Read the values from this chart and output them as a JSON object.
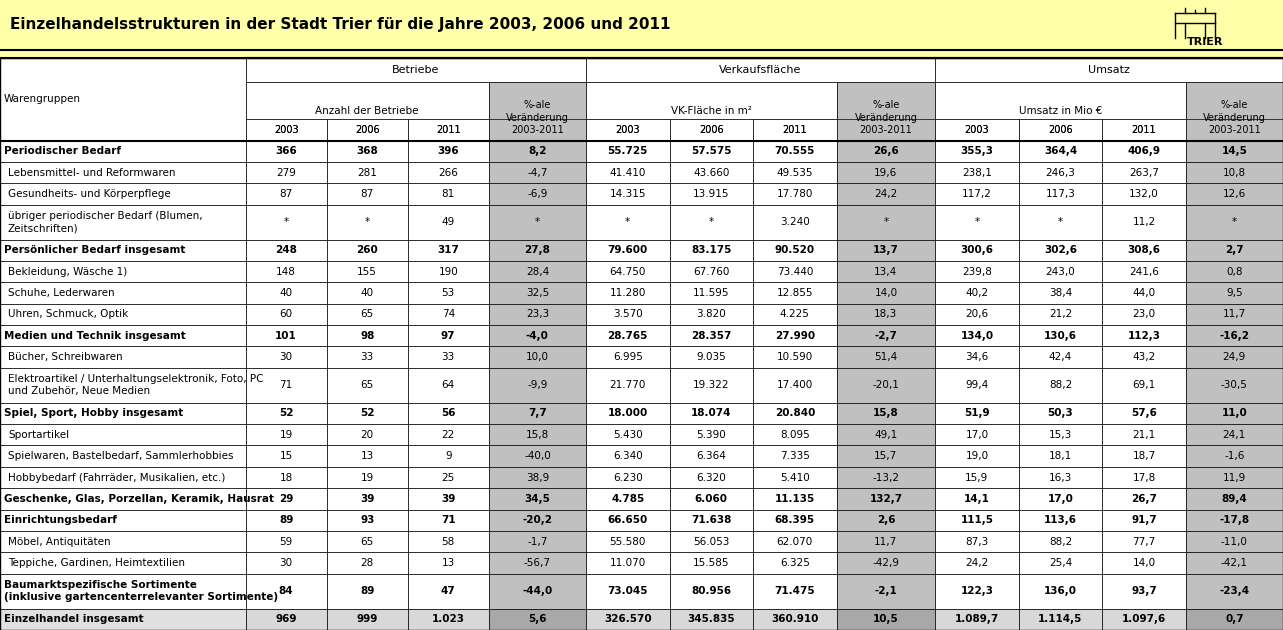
{
  "title": "Einzelhandelsstrukturen in der Stadt Trier für die Jahre 2003, 2006 und 2011",
  "header_bg": "#FFFFAA",
  "gray_col_bg": "#C0C0C0",
  "rows": [
    {
      "label": "Periodischer Bedarf",
      "bold": true,
      "multiline": false,
      "indent": false,
      "b03": "366",
      "b06": "368",
      "b11": "396",
      "bv": "8,2",
      "vk03": "55.725",
      "vk06": "57.575",
      "vk11": "70.555",
      "vkv": "26,6",
      "u03": "355,3",
      "u06": "364,4",
      "u11": "406,9",
      "uv": "14,5"
    },
    {
      "label": "Lebensmittel- und Reformwaren",
      "bold": false,
      "multiline": false,
      "indent": true,
      "b03": "279",
      "b06": "281",
      "b11": "266",
      "bv": "-4,7",
      "vk03": "41.410",
      "vk06": "43.660",
      "vk11": "49.535",
      "vkv": "19,6",
      "u03": "238,1",
      "u06": "246,3",
      "u11": "263,7",
      "uv": "10,8"
    },
    {
      "label": "Gesundheits- und Körperpflege",
      "bold": false,
      "multiline": false,
      "indent": true,
      "b03": "87",
      "b06": "87",
      "b11": "81",
      "bv": "-6,9",
      "vk03": "14.315",
      "vk06": "13.915",
      "vk11": "17.780",
      "vkv": "24,2",
      "u03": "117,2",
      "u06": "117,3",
      "u11": "132,0",
      "uv": "12,6"
    },
    {
      "label": "übriger periodischer Bedarf (Blumen,\nZeitschriften)",
      "bold": false,
      "multiline": true,
      "indent": true,
      "b03": "*",
      "b06": "*",
      "b11": "49",
      "bv": "*",
      "vk03": "*",
      "vk06": "*",
      "vk11": "3.240",
      "vkv": "*",
      "u03": "*",
      "u06": "*",
      "u11": "11,2",
      "uv": "*"
    },
    {
      "label": "Persönlicher Bedarf insgesamt",
      "bold": true,
      "multiline": false,
      "indent": false,
      "b03": "248",
      "b06": "260",
      "b11": "317",
      "bv": "27,8",
      "vk03": "79.600",
      "vk06": "83.175",
      "vk11": "90.520",
      "vkv": "13,7",
      "u03": "300,6",
      "u06": "302,6",
      "u11": "308,6",
      "uv": "2,7"
    },
    {
      "label": "Bekleidung, Wäsche 1)",
      "bold": false,
      "multiline": false,
      "indent": true,
      "b03": "148",
      "b06": "155",
      "b11": "190",
      "bv": "28,4",
      "vk03": "64.750",
      "vk06": "67.760",
      "vk11": "73.440",
      "vkv": "13,4",
      "u03": "239,8",
      "u06": "243,0",
      "u11": "241,6",
      "uv": "0,8"
    },
    {
      "label": "Schuhe, Lederwaren",
      "bold": false,
      "multiline": false,
      "indent": true,
      "b03": "40",
      "b06": "40",
      "b11": "53",
      "bv": "32,5",
      "vk03": "11.280",
      "vk06": "11.595",
      "vk11": "12.855",
      "vkv": "14,0",
      "u03": "40,2",
      "u06": "38,4",
      "u11": "44,0",
      "uv": "9,5"
    },
    {
      "label": "Uhren, Schmuck, Optik",
      "bold": false,
      "multiline": false,
      "indent": true,
      "b03": "60",
      "b06": "65",
      "b11": "74",
      "bv": "23,3",
      "vk03": "3.570",
      "vk06": "3.820",
      "vk11": "4.225",
      "vkv": "18,3",
      "u03": "20,6",
      "u06": "21,2",
      "u11": "23,0",
      "uv": "11,7"
    },
    {
      "label": "Medien und Technik insgesamt",
      "bold": true,
      "multiline": false,
      "indent": false,
      "b03": "101",
      "b06": "98",
      "b11": "97",
      "bv": "-4,0",
      "vk03": "28.765",
      "vk06": "28.357",
      "vk11": "27.990",
      "vkv": "-2,7",
      "u03": "134,0",
      "u06": "130,6",
      "u11": "112,3",
      "uv": "-16,2"
    },
    {
      "label": "Bücher, Schreibwaren",
      "bold": false,
      "multiline": false,
      "indent": true,
      "b03": "30",
      "b06": "33",
      "b11": "33",
      "bv": "10,0",
      "vk03": "6.995",
      "vk06": "9.035",
      "vk11": "10.590",
      "vkv": "51,4",
      "u03": "34,6",
      "u06": "42,4",
      "u11": "43,2",
      "uv": "24,9"
    },
    {
      "label": "Elektroartikel / Unterhaltungselektronik, Foto, PC\nund Zubehör, Neue Medien",
      "bold": false,
      "multiline": true,
      "indent": true,
      "b03": "71",
      "b06": "65",
      "b11": "64",
      "bv": "-9,9",
      "vk03": "21.770",
      "vk06": "19.322",
      "vk11": "17.400",
      "vkv": "-20,1",
      "u03": "99,4",
      "u06": "88,2",
      "u11": "69,1",
      "uv": "-30,5"
    },
    {
      "label": "Spiel, Sport, Hobby insgesamt",
      "bold": true,
      "multiline": false,
      "indent": false,
      "b03": "52",
      "b06": "52",
      "b11": "56",
      "bv": "7,7",
      "vk03": "18.000",
      "vk06": "18.074",
      "vk11": "20.840",
      "vkv": "15,8",
      "u03": "51,9",
      "u06": "50,3",
      "u11": "57,6",
      "uv": "11,0"
    },
    {
      "label": "Sportartikel",
      "bold": false,
      "multiline": false,
      "indent": true,
      "b03": "19",
      "b06": "20",
      "b11": "22",
      "bv": "15,8",
      "vk03": "5.430",
      "vk06": "5.390",
      "vk11": "8.095",
      "vkv": "49,1",
      "u03": "17,0",
      "u06": "15,3",
      "u11": "21,1",
      "uv": "24,1"
    },
    {
      "label": "Spielwaren, Bastelbedarf, Sammlerhobbies",
      "bold": false,
      "multiline": false,
      "indent": true,
      "b03": "15",
      "b06": "13",
      "b11": "9",
      "bv": "-40,0",
      "vk03": "6.340",
      "vk06": "6.364",
      "vk11": "7.335",
      "vkv": "15,7",
      "u03": "19,0",
      "u06": "18,1",
      "u11": "18,7",
      "uv": "-1,6"
    },
    {
      "label": "Hobbybedarf (Fahrräder, Musikalien, etc.)",
      "bold": false,
      "multiline": false,
      "indent": true,
      "b03": "18",
      "b06": "19",
      "b11": "25",
      "bv": "38,9",
      "vk03": "6.230",
      "vk06": "6.320",
      "vk11": "5.410",
      "vkv": "-13,2",
      "u03": "15,9",
      "u06": "16,3",
      "u11": "17,8",
      "uv": "11,9"
    },
    {
      "label": "Geschenke, Glas, Porzellan, Keramik, Hausrat",
      "bold": true,
      "multiline": false,
      "indent": false,
      "b03": "29",
      "b06": "39",
      "b11": "39",
      "bv": "34,5",
      "vk03": "4.785",
      "vk06": "6.060",
      "vk11": "11.135",
      "vkv": "132,7",
      "u03": "14,1",
      "u06": "17,0",
      "u11": "26,7",
      "uv": "89,4"
    },
    {
      "label": "Einrichtungsbedarf",
      "bold": true,
      "multiline": false,
      "indent": false,
      "b03": "89",
      "b06": "93",
      "b11": "71",
      "bv": "-20,2",
      "vk03": "66.650",
      "vk06": "71.638",
      "vk11": "68.395",
      "vkv": "2,6",
      "u03": "111,5",
      "u06": "113,6",
      "u11": "91,7",
      "uv": "-17,8"
    },
    {
      "label": "Möbel, Antiquitäten",
      "bold": false,
      "multiline": false,
      "indent": true,
      "b03": "59",
      "b06": "65",
      "b11": "58",
      "bv": "-1,7",
      "vk03": "55.580",
      "vk06": "56.053",
      "vk11": "62.070",
      "vkv": "11,7",
      "u03": "87,3",
      "u06": "88,2",
      "u11": "77,7",
      "uv": "-11,0"
    },
    {
      "label": "Teppiche, Gardinen, Heimtextilien",
      "bold": false,
      "multiline": false,
      "indent": true,
      "b03": "30",
      "b06": "28",
      "b11": "13",
      "bv": "-56,7",
      "vk03": "11.070",
      "vk06": "15.585",
      "vk11": "6.325",
      "vkv": "-42,9",
      "u03": "24,2",
      "u06": "25,4",
      "u11": "14,0",
      "uv": "-42,1"
    },
    {
      "label": "Baumarktspezifische Sortimente\n(inklusive gartencenterrelevanter Sortimente)",
      "bold": true,
      "multiline": true,
      "indent": false,
      "b03": "84",
      "b06": "89",
      "b11": "47",
      "bv": "-44,0",
      "vk03": "73.045",
      "vk06": "80.956",
      "vk11": "71.475",
      "vkv": "-2,1",
      "u03": "122,3",
      "u06": "136,0",
      "u11": "93,7",
      "uv": "-23,4"
    },
    {
      "label": "Einzelhandel insgesamt",
      "bold": true,
      "multiline": false,
      "indent": false,
      "total": true,
      "b03": "969",
      "b06": "999",
      "b11": "1.023",
      "bv": "5,6",
      "vk03": "326.570",
      "vk06": "345.835",
      "vk11": "360.910",
      "vkv": "10,5",
      "u03": "1.089,7",
      "u06": "1.114,5",
      "u11": "1.097,6",
      "uv": "0,7"
    }
  ]
}
